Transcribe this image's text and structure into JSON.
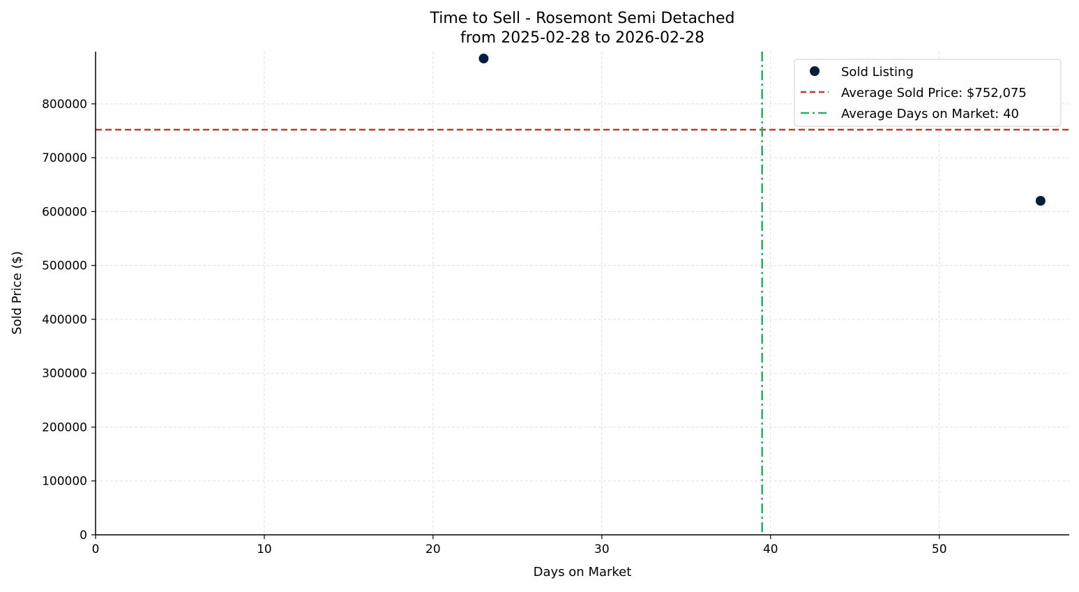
{
  "chart_data": {
    "type": "scatter",
    "title": "Time to Sell - Rosemont Semi Detached",
    "subtitle": "from 2025-02-28 to 2026-02-28",
    "xlabel": "Days on Market",
    "ylabel": "Sold Price ($)",
    "xlim": [
      0,
      57.7
    ],
    "ylim": [
      0,
      897000
    ],
    "xticks": [
      0,
      10,
      20,
      30,
      40,
      50
    ],
    "yticks": [
      0,
      100000,
      200000,
      300000,
      400000,
      500000,
      600000,
      700000,
      800000
    ],
    "grid": true,
    "legend_placement": "top-right",
    "series": [
      {
        "name": "Sold Listing",
        "color": "#001f3f",
        "points": [
          {
            "x": 23,
            "y": 884150
          },
          {
            "x": 56,
            "y": 620000
          }
        ]
      }
    ],
    "reference_lines": [
      {
        "name": "Average Sold Price: $752,075",
        "orientation": "horizontal",
        "value": 752075,
        "color": "#c0392b",
        "style": "dashed"
      },
      {
        "name": "Average Days on Market: 40",
        "orientation": "vertical",
        "value": 39.5,
        "color": "#27ae60",
        "style": "dashdot"
      }
    ]
  }
}
